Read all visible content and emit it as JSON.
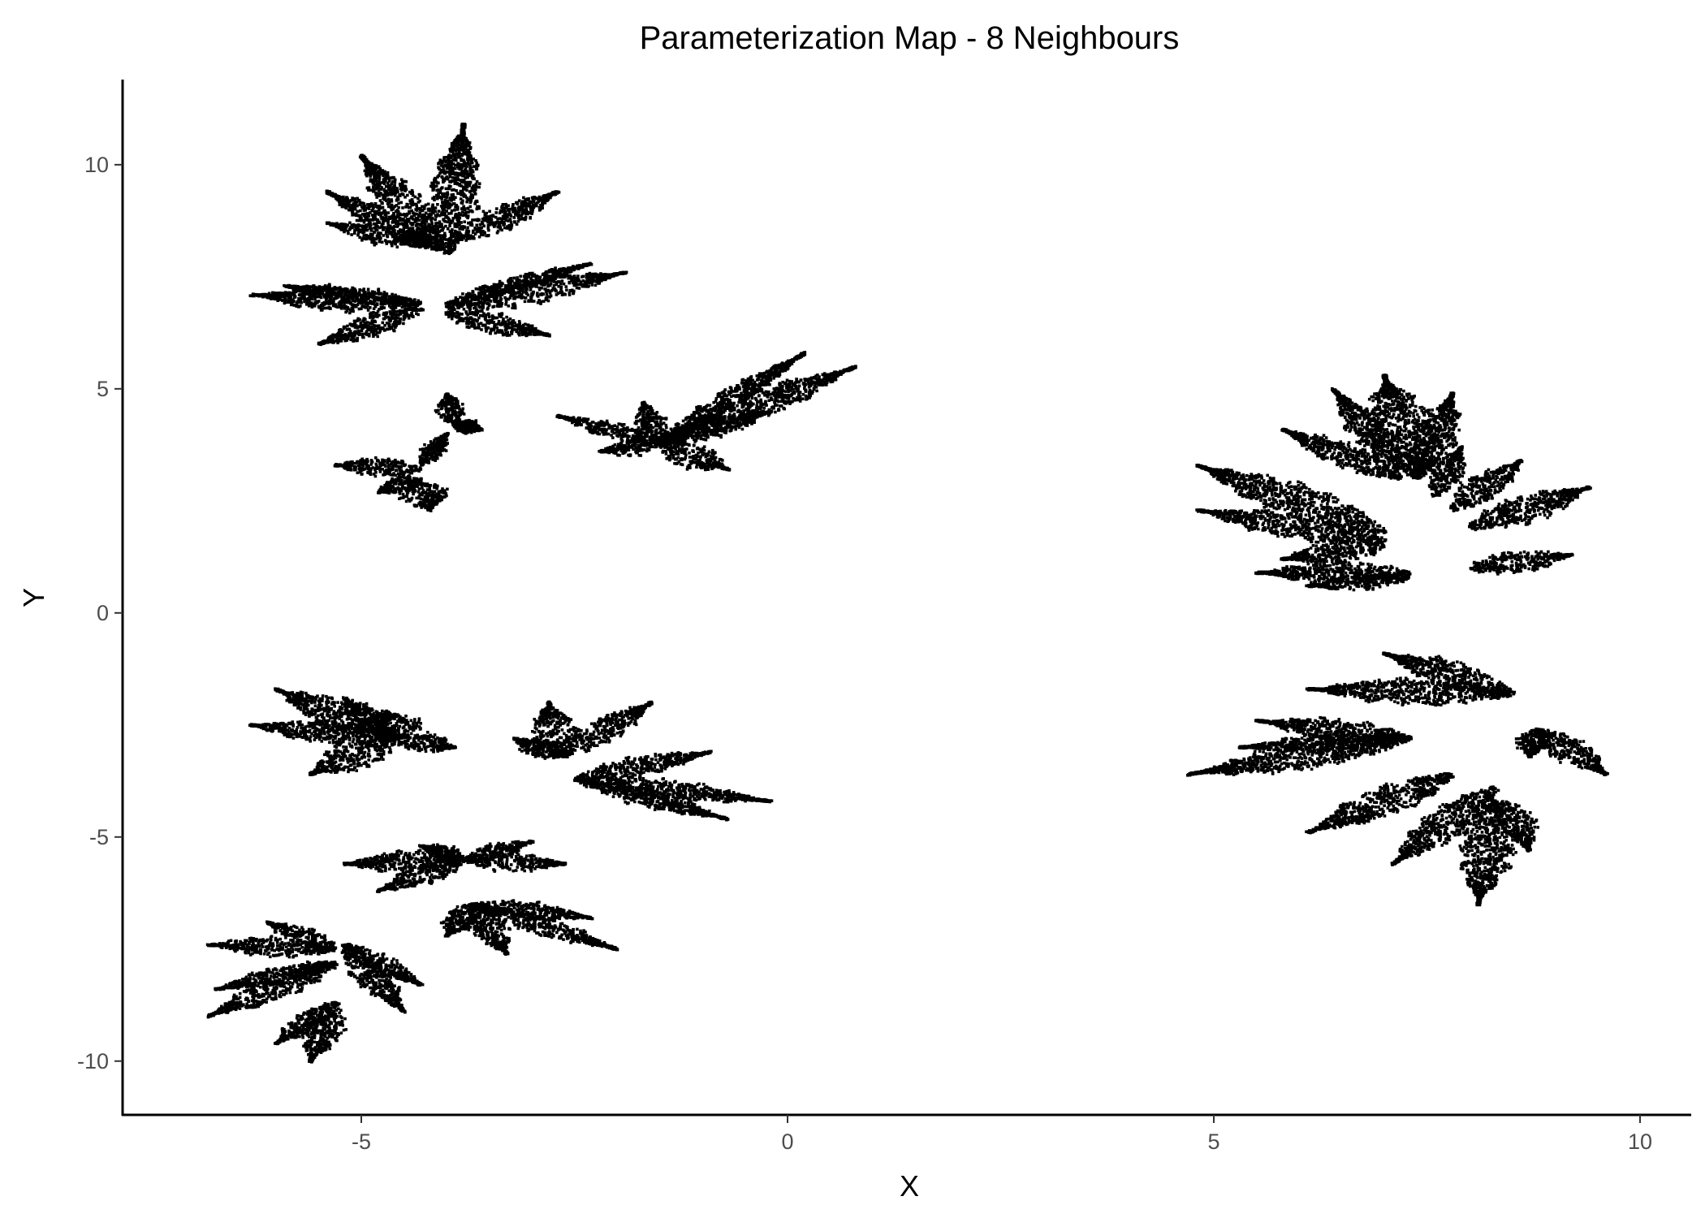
{
  "chart_data": {
    "type": "scatter",
    "title": "Parameterization Map - 8 Neighbours",
    "xlabel": "X",
    "ylabel": "Y",
    "xlim": [
      -7.8,
      10.6
    ],
    "ylim": [
      -11.2,
      11.9
    ],
    "x_ticks": [
      -5,
      0,
      5,
      10
    ],
    "y_ticks": [
      -10,
      -5,
      0,
      5,
      10
    ],
    "x_tick_labels": [
      "-5",
      "0",
      "5",
      "10"
    ],
    "y_tick_labels": [
      "-10",
      "-5",
      "0",
      "5",
      "10"
    ],
    "grid": false,
    "legend": "none",
    "point_color": "#000000",
    "clusters": [
      {
        "lobes": [
          {
            "base": [
              -4.0,
              8.0
            ],
            "tip": [
              -3.8,
              10.9
            ],
            "width": 0.55
          },
          {
            "base": [
              -4.1,
              8.2
            ],
            "tip": [
              -5.0,
              10.2
            ],
            "width": 0.5
          },
          {
            "base": [
              -4.1,
              8.1
            ],
            "tip": [
              -5.4,
              9.4
            ],
            "width": 0.45
          },
          {
            "base": [
              -4.2,
              8.2
            ],
            "tip": [
              -5.4,
              8.7
            ],
            "width": 0.4
          },
          {
            "base": [
              -3.9,
              8.3
            ],
            "tip": [
              -2.7,
              9.4
            ],
            "width": 0.45
          },
          {
            "base": [
              -4.3,
              6.9
            ],
            "tip": [
              -6.3,
              7.1
            ],
            "width": 0.5
          },
          {
            "base": [
              -4.3,
              6.8
            ],
            "tip": [
              -5.5,
              6.0
            ],
            "width": 0.45
          },
          {
            "base": [
              -4.3,
              6.9
            ],
            "tip": [
              -5.9,
              7.3
            ],
            "width": 0.35
          },
          {
            "base": [
              -4.0,
              6.8
            ],
            "tip": [
              -1.9,
              7.6
            ],
            "width": 0.5
          },
          {
            "base": [
              -4.0,
              6.7
            ],
            "tip": [
              -2.8,
              6.2
            ],
            "width": 0.45
          },
          {
            "base": [
              -4.0,
              6.9
            ],
            "tip": [
              -2.3,
              7.8
            ],
            "width": 0.3
          }
        ]
      },
      {
        "lobes": [
          {
            "base": [
              -4.3,
              3.2
            ],
            "tip": [
              -5.3,
              3.3
            ],
            "width": 0.4
          },
          {
            "base": [
              -4.3,
              3.0
            ],
            "tip": [
              -4.8,
              2.7
            ],
            "width": 0.35
          },
          {
            "base": [
              -4.3,
              2.9
            ],
            "tip": [
              -4.2,
              2.3
            ],
            "width": 0.55
          },
          {
            "base": [
              -3.9,
              4.2
            ],
            "tip": [
              -4.0,
              4.9
            ],
            "width": 0.3
          },
          {
            "base": [
              -3.9,
              4.2
            ],
            "tip": [
              -3.6,
              4.1
            ],
            "width": 0.3
          },
          {
            "base": [
              -4.3,
              3.3
            ],
            "tip": [
              -4.0,
              4.0
            ],
            "width": 0.25
          }
        ]
      },
      {
        "lobes": [
          {
            "base": [
              -1.5,
              3.8
            ],
            "tip": [
              0.8,
              5.5
            ],
            "width": 0.55
          },
          {
            "base": [
              -1.5,
              3.8
            ],
            "tip": [
              0.2,
              5.8
            ],
            "width": 0.35
          },
          {
            "base": [
              -1.5,
              3.8
            ],
            "tip": [
              -0.2,
              4.5
            ],
            "width": 0.4
          },
          {
            "base": [
              -1.5,
              3.8
            ],
            "tip": [
              -0.7,
              3.2
            ],
            "width": 0.5
          },
          {
            "base": [
              -1.5,
              3.8
            ],
            "tip": [
              -2.7,
              4.4
            ],
            "width": 0.3
          },
          {
            "base": [
              -1.5,
              3.8
            ],
            "tip": [
              -2.2,
              3.6
            ],
            "width": 0.35
          },
          {
            "base": [
              -1.5,
              3.8
            ],
            "tip": [
              -1.7,
              4.7
            ],
            "width": 0.35
          }
        ]
      },
      {
        "lobes": [
          {
            "base": [
              7.0,
              1.8
            ],
            "tip": [
              4.8,
              3.3
            ],
            "width": 0.65
          },
          {
            "base": [
              7.0,
              1.6
            ],
            "tip": [
              4.8,
              2.3
            ],
            "width": 0.5
          },
          {
            "base": [
              7.0,
              1.5
            ],
            "tip": [
              5.8,
              1.2
            ],
            "width": 0.45
          },
          {
            "base": [
              7.3,
              0.9
            ],
            "tip": [
              5.5,
              0.9
            ],
            "width": 0.45
          },
          {
            "base": [
              7.3,
              0.8
            ],
            "tip": [
              6.1,
              0.6
            ],
            "width": 0.35
          },
          {
            "base": [
              8.0,
              1.0
            ],
            "tip": [
              9.2,
              1.3
            ],
            "width": 0.45
          },
          {
            "base": [
              8.0,
              1.9
            ],
            "tip": [
              9.4,
              2.8
            ],
            "width": 0.55
          },
          {
            "base": [
              7.8,
              2.3
            ],
            "tip": [
              8.6,
              3.4
            ],
            "width": 0.45
          },
          {
            "base": [
              7.6,
              2.6
            ],
            "tip": [
              7.9,
              3.7
            ],
            "width": 0.35
          },
          {
            "base": [
              7.4,
              3.0
            ],
            "tip": [
              7.0,
              5.3
            ],
            "width": 0.8
          },
          {
            "base": [
              7.4,
              3.0
            ],
            "tip": [
              7.8,
              4.9
            ],
            "width": 0.5
          },
          {
            "base": [
              7.2,
              3.0
            ],
            "tip": [
              5.8,
              4.1
            ],
            "width": 0.45
          },
          {
            "base": [
              7.2,
              3.2
            ],
            "tip": [
              6.4,
              5.0
            ],
            "width": 0.4
          }
        ]
      },
      {
        "lobes": [
          {
            "base": [
              8.5,
              -1.8
            ],
            "tip": [
              6.1,
              -1.7
            ],
            "width": 0.55
          },
          {
            "base": [
              8.5,
              -1.8
            ],
            "tip": [
              7.0,
              -0.9
            ],
            "width": 0.55
          },
          {
            "base": [
              7.3,
              -2.8
            ],
            "tip": [
              4.7,
              -3.6
            ],
            "width": 0.55
          },
          {
            "base": [
              7.3,
              -2.8
            ],
            "tip": [
              5.5,
              -2.4
            ],
            "width": 0.45
          },
          {
            "base": [
              7.3,
              -2.8
            ],
            "tip": [
              5.3,
              -3.0
            ],
            "width": 0.4
          },
          {
            "base": [
              8.8,
              -2.6
            ],
            "tip": [
              9.6,
              -3.6
            ],
            "width": 0.45
          },
          {
            "base": [
              8.8,
              -2.6
            ],
            "tip": [
              8.7,
              -3.2
            ],
            "width": 0.4
          },
          {
            "base": [
              7.8,
              -3.6
            ],
            "tip": [
              6.1,
              -4.9
            ],
            "width": 0.55
          },
          {
            "base": [
              8.3,
              -3.9
            ],
            "tip": [
              7.1,
              -5.6
            ],
            "width": 0.55
          },
          {
            "base": [
              8.3,
              -4.2
            ],
            "tip": [
              8.1,
              -6.5
            ],
            "width": 0.6
          },
          {
            "base": [
              8.4,
              -4.2
            ],
            "tip": [
              8.7,
              -5.3
            ],
            "width": 0.45
          }
        ]
      },
      {
        "lobes": [
          {
            "base": [
              -4.6,
              -2.8
            ],
            "tip": [
              -6.3,
              -2.5
            ],
            "width": 0.45
          },
          {
            "base": [
              -4.6,
              -2.8
            ],
            "tip": [
              -6.0,
              -1.7
            ],
            "width": 0.55
          },
          {
            "base": [
              -4.6,
              -2.8
            ],
            "tip": [
              -5.6,
              -3.6
            ],
            "width": 0.55
          },
          {
            "base": [
              -4.6,
              -2.8
            ],
            "tip": [
              -4.7,
              -2.2
            ],
            "width": 0.7
          },
          {
            "base": [
              -4.6,
              -2.8
            ],
            "tip": [
              -3.9,
              -3.0
            ],
            "width": 0.45
          },
          {
            "base": [
              -4.6,
              -2.8
            ],
            "tip": [
              -5.2,
              -1.9
            ],
            "width": 0.45
          }
        ]
      },
      {
        "lobes": [
          {
            "base": [
              -2.7,
              -3.2
            ],
            "tip": [
              -1.6,
              -2.0
            ],
            "width": 0.45
          },
          {
            "base": [
              -2.7,
              -3.2
            ],
            "tip": [
              -2.8,
              -2.0
            ],
            "width": 0.5
          },
          {
            "base": [
              -2.7,
              -3.2
            ],
            "tip": [
              -3.2,
              -2.8
            ],
            "width": 0.35
          },
          {
            "base": [
              -2.5,
              -3.7
            ],
            "tip": [
              -0.2,
              -4.2
            ],
            "width": 0.4
          },
          {
            "base": [
              -2.5,
              -3.7
            ],
            "tip": [
              -0.9,
              -3.1
            ],
            "width": 0.4
          },
          {
            "base": [
              -2.5,
              -3.7
            ],
            "tip": [
              -0.7,
              -4.6
            ],
            "width": 0.35
          }
        ]
      },
      {
        "lobes": [
          {
            "base": [
              -3.8,
              -5.5
            ],
            "tip": [
              -5.2,
              -5.6
            ],
            "width": 0.45
          },
          {
            "base": [
              -3.8,
              -5.5
            ],
            "tip": [
              -4.8,
              -6.2
            ],
            "width": 0.4
          },
          {
            "base": [
              -3.8,
              -5.5
            ],
            "tip": [
              -2.6,
              -5.6
            ],
            "width": 0.4
          },
          {
            "base": [
              -3.8,
              -5.5
            ],
            "tip": [
              -3.0,
              -5.1
            ],
            "width": 0.3
          },
          {
            "base": [
              -3.8,
              -5.5
            ],
            "tip": [
              -4.3,
              -5.2
            ],
            "width": 0.3
          },
          {
            "base": [
              -3.7,
              -6.5
            ],
            "tip": [
              -3.3,
              -7.6
            ],
            "width": 0.45
          },
          {
            "base": [
              -3.7,
              -6.5
            ],
            "tip": [
              -2.0,
              -7.5
            ],
            "width": 0.35
          },
          {
            "base": [
              -3.7,
              -6.5
            ],
            "tip": [
              -2.3,
              -6.8
            ],
            "width": 0.35
          },
          {
            "base": [
              -3.7,
              -6.5
            ],
            "tip": [
              -4.0,
              -7.2
            ],
            "width": 0.35
          }
        ]
      },
      {
        "lobes": [
          {
            "base": [
              -5.3,
              -7.8
            ],
            "tip": [
              -6.8,
              -9.0
            ],
            "width": 0.45
          },
          {
            "base": [
              -5.3,
              -7.8
            ],
            "tip": [
              -6.7,
              -8.4
            ],
            "width": 0.35
          },
          {
            "base": [
              -5.3,
              -7.5
            ],
            "tip": [
              -6.8,
              -7.4
            ],
            "width": 0.4
          },
          {
            "base": [
              -5.3,
              -7.5
            ],
            "tip": [
              -6.1,
              -6.9
            ],
            "width": 0.35
          },
          {
            "base": [
              -5.3,
              -8.7
            ],
            "tip": [
              -5.6,
              -10.0
            ],
            "width": 0.45
          },
          {
            "base": [
              -5.3,
              -8.7
            ],
            "tip": [
              -6.0,
              -9.6
            ],
            "width": 0.35
          },
          {
            "base": [
              -5.2,
              -7.4
            ],
            "tip": [
              -4.5,
              -8.9
            ],
            "width": 0.4
          },
          {
            "base": [
              -5.2,
              -7.4
            ],
            "tip": [
              -4.3,
              -8.3
            ],
            "width": 0.35
          }
        ]
      }
    ]
  }
}
